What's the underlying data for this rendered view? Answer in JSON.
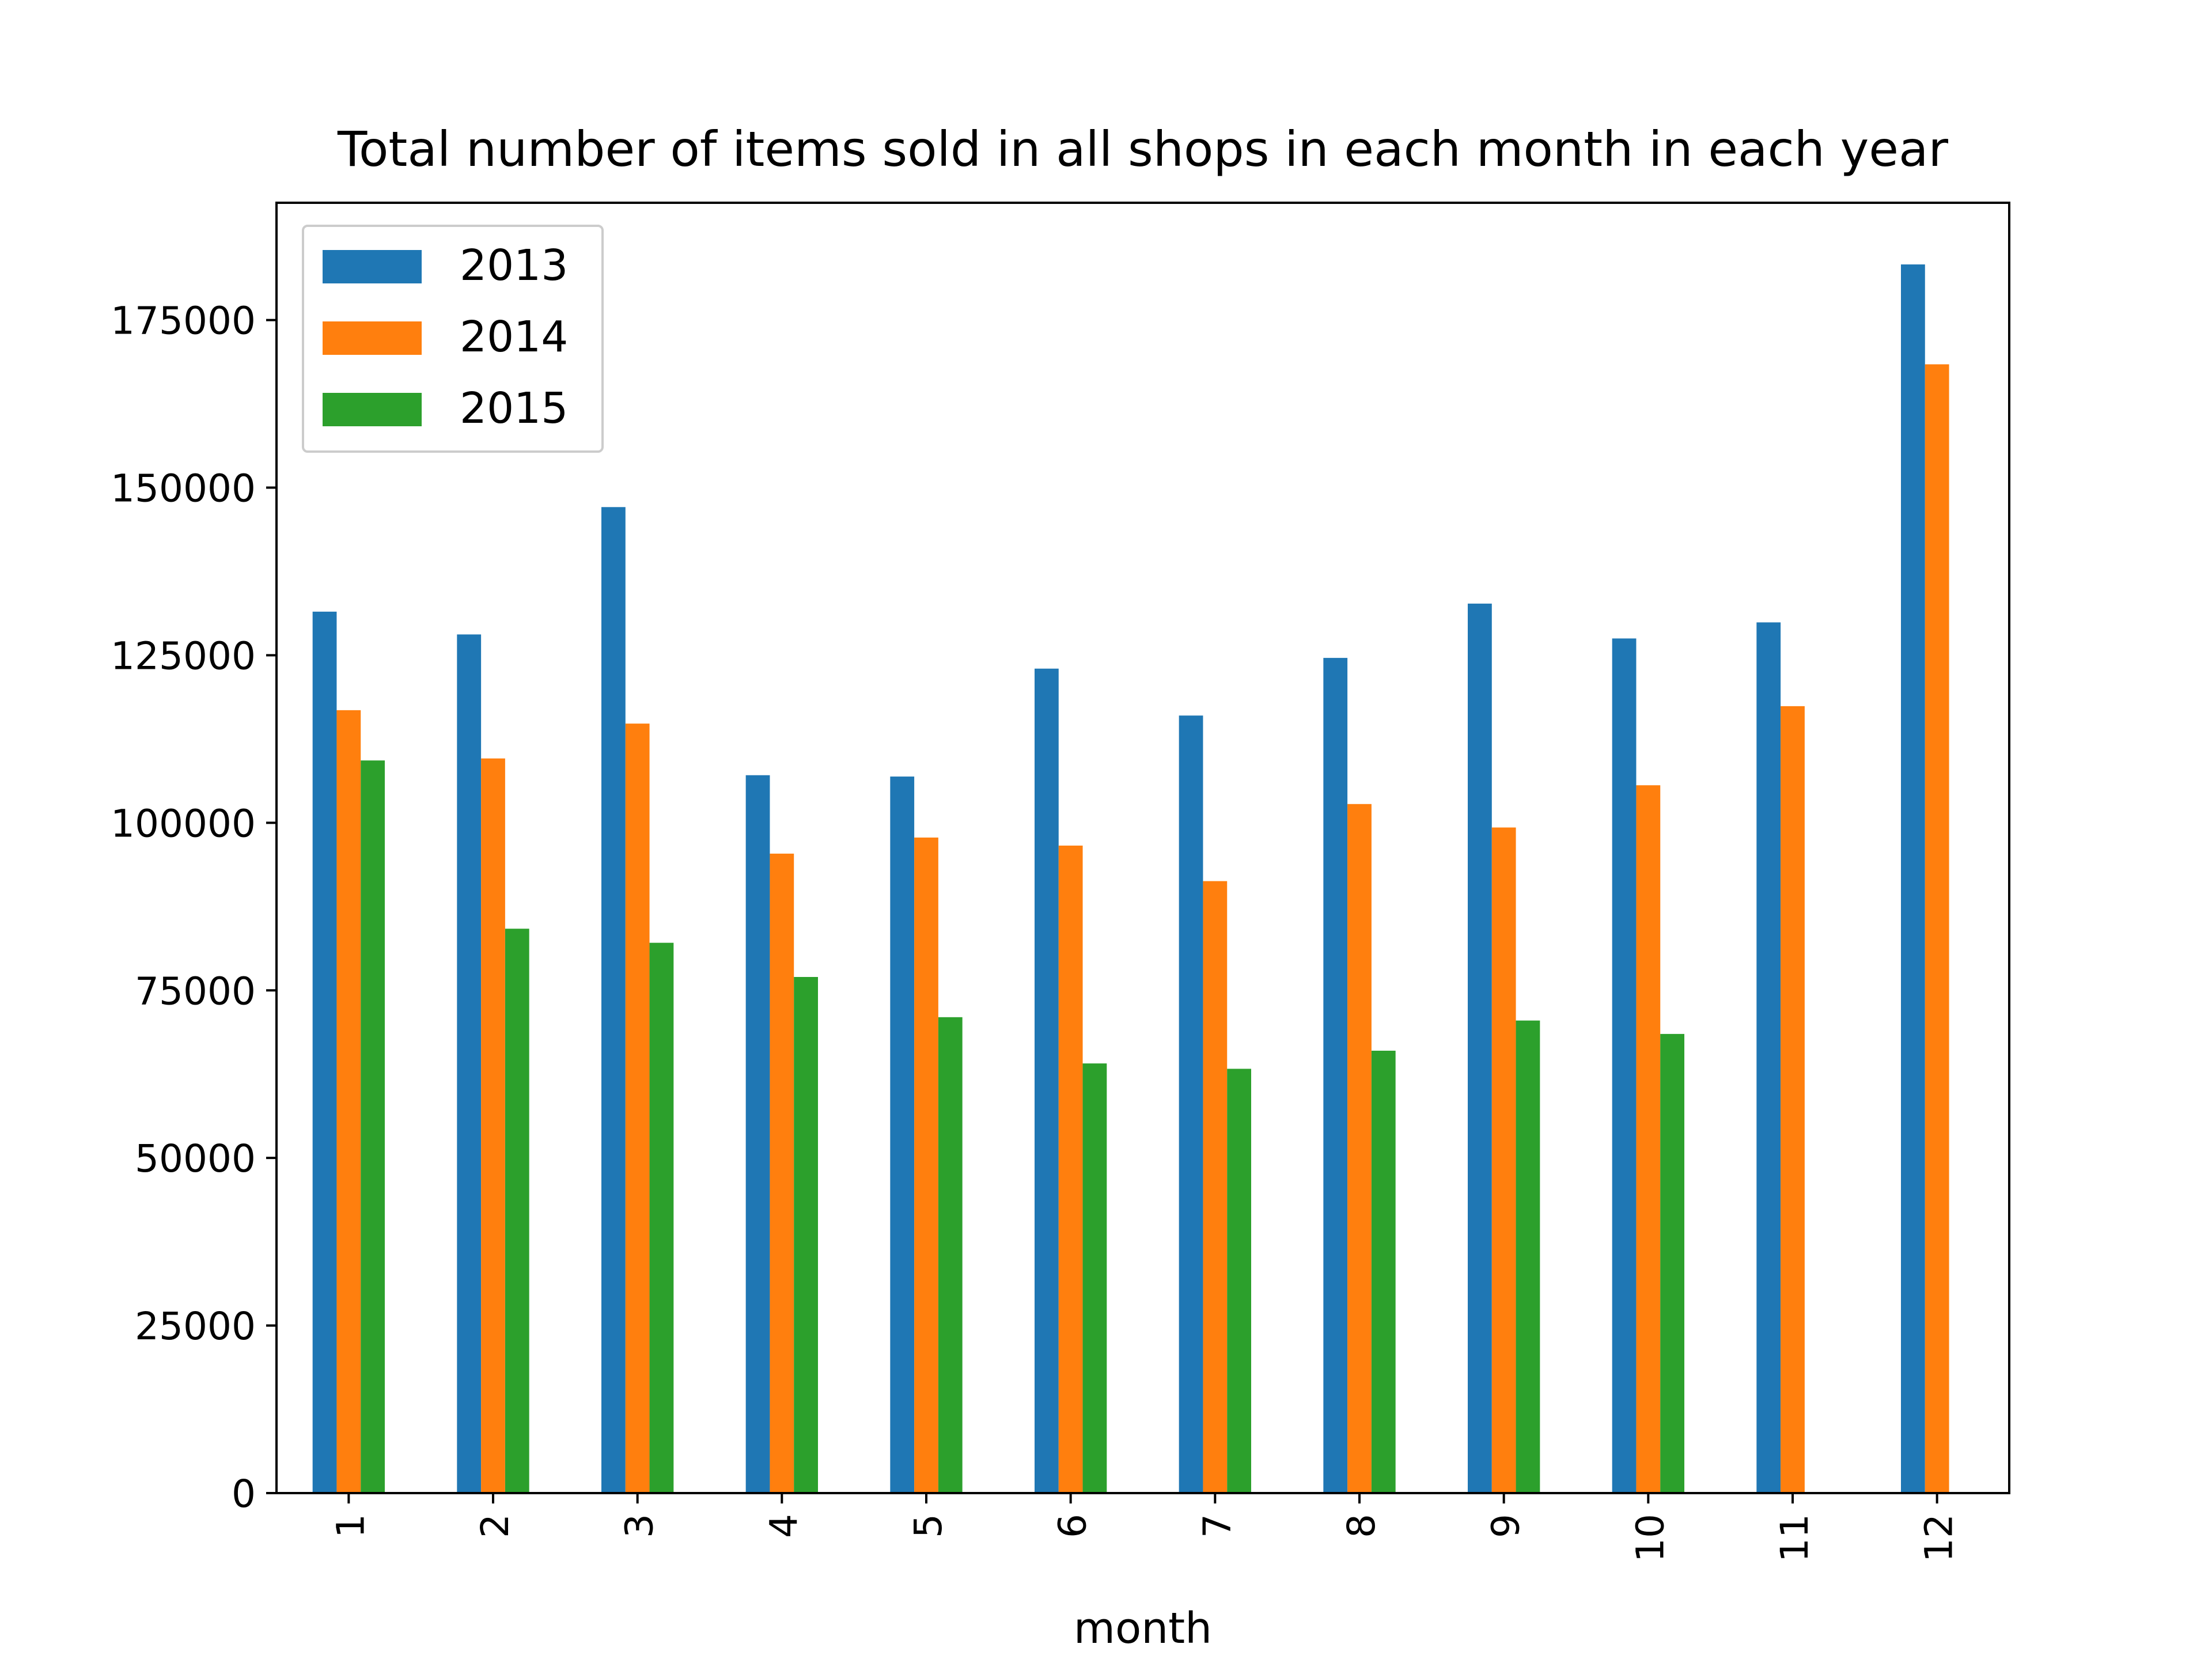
{
  "chart_data": {
    "type": "bar",
    "title": "Total number of items sold in all shops in each month in each year",
    "xlabel": "month",
    "ylabel": "",
    "categories": [
      "1",
      "2",
      "3",
      "4",
      "5",
      "6",
      "7",
      "8",
      "9",
      "10",
      "11",
      "12"
    ],
    "series": [
      {
        "name": "2013",
        "color": "#1f77b4",
        "values": [
          131500,
          128100,
          147100,
          107100,
          106900,
          123000,
          116000,
          124600,
          132700,
          127500,
          129900,
          183300
        ]
      },
      {
        "name": "2014",
        "color": "#ff7f0e",
        "values": [
          116800,
          109600,
          114800,
          95400,
          97800,
          96600,
          91300,
          102800,
          99300,
          105600,
          117400,
          168400
        ]
      },
      {
        "name": "2015",
        "color": "#2ca02c",
        "values": [
          109300,
          84200,
          82100,
          77000,
          71000,
          64100,
          63300,
          66000,
          70500,
          68500,
          null,
          null
        ]
      }
    ],
    "yticks": [
      0,
      25000,
      50000,
      75000,
      100000,
      125000,
      150000,
      175000
    ],
    "ytick_labels": [
      "0",
      "25000",
      "50000",
      "75000",
      "100000",
      "125000",
      "150000",
      "175000"
    ],
    "ylim": [
      0,
      192500
    ],
    "grid": false,
    "legend_position": "top-left"
  }
}
